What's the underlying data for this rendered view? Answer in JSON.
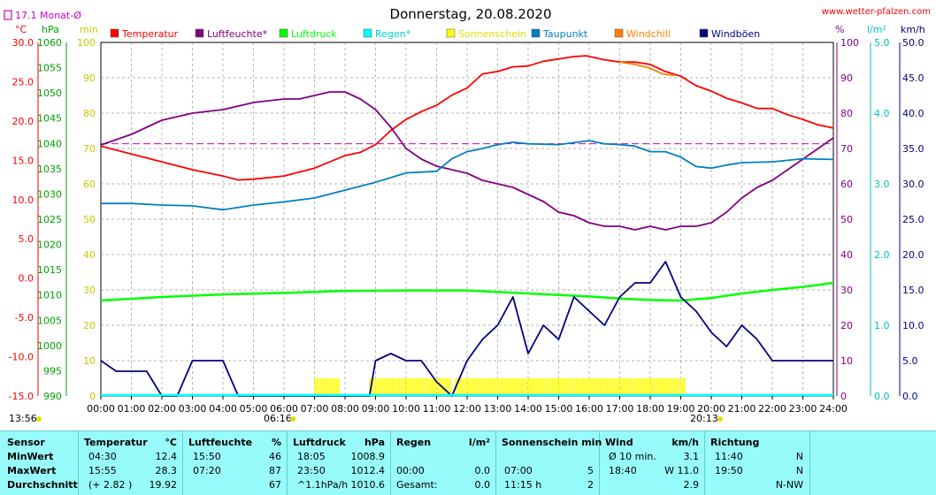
{
  "header": {
    "title": "Donnerstag, 20.08.2020",
    "site": "www.wetter-pfalzen.com",
    "month_avg": "17.1 Monat-Ø",
    "time_start": "13:56",
    "time_end": "20:13",
    "sunrise": "06:16"
  },
  "axes": {
    "temp": {
      "unit": "°C",
      "ticks": [
        "30.0",
        "25.0",
        "20.0",
        "15.0",
        "10.0",
        "5.0",
        "0.0",
        "-5.0",
        "-10.0",
        "-15.0"
      ],
      "color": "#ff0000"
    },
    "pressure": {
      "unit": "hPa",
      "ticks": [
        "1060",
        "1055",
        "1050",
        "1045",
        "1040",
        "1035",
        "1030",
        "1025",
        "1020",
        "1015",
        "1010",
        "1005",
        "1000",
        "995",
        "990"
      ],
      "color": "#00a000"
    },
    "sun": {
      "unit": "min",
      "ticks": [
        "100",
        "90",
        "80",
        "70",
        "60",
        "50",
        "40",
        "30",
        "20",
        "10",
        "0"
      ],
      "color": "#e0e000"
    },
    "humidity": {
      "unit": "%",
      "ticks": [
        "100",
        "90",
        "80",
        "70",
        "60",
        "50",
        "40",
        "30",
        "20",
        "10",
        "0"
      ],
      "color": "#800080"
    },
    "rain": {
      "unit": "l/m²",
      "ticks": [
        "5.0",
        "4.0",
        "3.0",
        "2.0",
        "1.0",
        "0.0"
      ],
      "color": "#00c0c0"
    },
    "wind": {
      "unit": "km/h",
      "ticks": [
        "50.0",
        "45.0",
        "40.0",
        "35.0",
        "30.0",
        "25.0",
        "20.0",
        "15.0",
        "10.0",
        "5.0",
        "0.0"
      ],
      "color": "#000080"
    },
    "x_ticks": [
      "00:00",
      "01:00",
      "02:00",
      "03:00",
      "04:00",
      "05:00",
      "06:00",
      "07:00",
      "08:00",
      "09:00",
      "10:00",
      "11:00",
      "12:00",
      "13:00",
      "14:00",
      "15:00",
      "16:00",
      "17:00",
      "18:00",
      "19:00",
      "20:00",
      "21:00",
      "22:00",
      "23:00",
      "24:00"
    ]
  },
  "legend": [
    {
      "label": "Temperatur",
      "color": "#ff0000"
    },
    {
      "label": "Luftfeuchte*",
      "color": "#800080"
    },
    {
      "label": "Luftdruck",
      "color": "#00ff00"
    },
    {
      "label": "Regen*",
      "color": "#00ffff"
    },
    {
      "label": "Sonnenschein",
      "color": "#ffff00"
    },
    {
      "label": "Taupunkt",
      "color": "#0080c0"
    },
    {
      "label": "Windchill",
      "color": "#ff8000"
    },
    {
      "label": "Windböen",
      "color": "#000080"
    }
  ],
  "chart_data": {
    "type": "line",
    "x_unit": "hour",
    "month_avg_temp": 17.1,
    "series": [
      {
        "name": "Temperatur",
        "axis": "temp",
        "color": "#ff0000",
        "x": [
          0,
          1,
          2,
          3,
          4,
          4.5,
          5,
          6,
          7,
          8,
          8.5,
          9,
          9.5,
          10,
          10.5,
          11,
          11.5,
          12,
          12.5,
          13,
          13.5,
          14,
          14.5,
          15,
          15.5,
          15.9,
          16.5,
          17,
          17.5,
          18,
          18.5,
          19,
          19.5,
          20,
          20.5,
          21,
          21.5,
          22,
          22.5,
          23,
          23.5,
          24
        ],
        "y": [
          16.8,
          15.8,
          14.8,
          13.8,
          13.0,
          12.5,
          12.6,
          13.0,
          14.0,
          15.6,
          16.0,
          17.0,
          18.8,
          20.2,
          21.2,
          22.0,
          23.3,
          24.2,
          26.0,
          26.3,
          26.9,
          27.0,
          27.6,
          27.9,
          28.2,
          28.3,
          27.8,
          27.5,
          27.5,
          27.2,
          26.3,
          25.7,
          24.5,
          23.8,
          22.9,
          22.3,
          21.6,
          21.6,
          20.8,
          20.2,
          19.5,
          19.1
        ]
      },
      {
        "name": "Windchill",
        "axis": "temp",
        "color": "#ff8000",
        "x": [
          17.0,
          17.5,
          18.0,
          18.4,
          18.8
        ],
        "y": [
          27.5,
          27.2,
          26.7,
          26.0,
          25.8
        ]
      },
      {
        "name": "Luftfeuchte*",
        "axis": "humidity",
        "color": "#800080",
        "x": [
          0,
          1,
          2,
          3,
          4,
          4.5,
          5,
          6,
          6.5,
          7,
          7.5,
          8,
          8.5,
          9,
          9.5,
          10,
          10.5,
          11,
          11.5,
          12,
          12.5,
          13,
          13.5,
          14,
          14.5,
          15,
          15.5,
          16,
          16.5,
          17,
          17.5,
          18,
          18.5,
          19,
          19.5,
          20,
          20.5,
          21,
          21.5,
          22,
          22.5,
          23,
          23.5,
          24
        ],
        "y": [
          71,
          74,
          78,
          80,
          81,
          82,
          83,
          84,
          84,
          85,
          86,
          86,
          84,
          81,
          76,
          70,
          67,
          65,
          64,
          63,
          61,
          60,
          59,
          57,
          55,
          52,
          51,
          49,
          48,
          48,
          47,
          48,
          47,
          48,
          48,
          49,
          52,
          56,
          59,
          61,
          64,
          67,
          70,
          73
        ]
      },
      {
        "name": "Luftdruck",
        "axis": "pressure",
        "color": "#00ff00",
        "x": [
          0,
          2,
          4,
          6,
          8,
          10,
          12,
          14,
          16,
          17,
          18,
          19,
          20,
          21,
          22,
          23,
          24
        ],
        "y": [
          1008.9,
          1009.6,
          1010.1,
          1010.4,
          1010.8,
          1010.9,
          1010.9,
          1010.3,
          1009.7,
          1009.3,
          1009.0,
          1008.9,
          1009.4,
          1010.3,
          1011.0,
          1011.6,
          1012.4
        ]
      },
      {
        "name": "Taupunkt",
        "axis": "temp",
        "color": "#0080c0",
        "x": [
          0,
          1,
          2,
          3,
          4,
          5,
          6,
          7,
          8,
          9,
          10,
          11,
          11.5,
          12,
          12.5,
          13,
          13.5,
          14,
          15,
          16,
          16.5,
          17,
          17.5,
          18,
          18.5,
          19,
          19.5,
          20,
          20.5,
          21,
          22,
          23,
          24
        ],
        "y": [
          9.5,
          9.5,
          9.3,
          9.2,
          8.7,
          9.3,
          9.7,
          10.2,
          11.2,
          12.2,
          13.4,
          13.6,
          15.2,
          16.1,
          16.5,
          17.0,
          17.3,
          17.1,
          17.0,
          17.5,
          17.1,
          17.0,
          16.8,
          16.1,
          16.1,
          15.4,
          14.2,
          14.0,
          14.4,
          14.7,
          14.8,
          15.2,
          15.1
        ]
      },
      {
        "name": "Windböen",
        "axis": "wind",
        "color": "#000080",
        "x": [
          0,
          0.5,
          1,
          1.5,
          2,
          2.5,
          3,
          3.5,
          4,
          4.5,
          5,
          8.8,
          9,
          9.5,
          10,
          10.5,
          11,
          11.5,
          12,
          12.5,
          13,
          13.5,
          14,
          14.5,
          15,
          15.5,
          16,
          16.5,
          17,
          17.5,
          18,
          18.5,
          19,
          19.5,
          20,
          20.5,
          21,
          21.5,
          22,
          22.5,
          23,
          23.5,
          24
        ],
        "y": [
          5,
          3.5,
          3.5,
          3.5,
          0,
          0,
          5,
          5,
          5,
          0,
          0,
          0,
          5,
          6,
          5,
          5,
          2,
          0,
          5,
          8,
          10,
          14,
          6,
          10,
          8,
          14,
          12,
          10,
          14,
          16,
          16,
          19,
          14,
          12,
          9,
          7,
          10,
          8,
          5,
          5,
          5,
          5,
          5
        ]
      },
      {
        "name": "Regen*",
        "axis": "rain",
        "color": "#00ffff",
        "x": [
          0,
          24
        ],
        "y": [
          0,
          0
        ]
      }
    ],
    "sunshine_blocks": [
      [
        7.0,
        7.8
      ],
      [
        8.8,
        11.5
      ],
      [
        11.6,
        19.1
      ]
    ],
    "ylim": {
      "temp": [
        -15,
        30
      ],
      "humidity": [
        0,
        100
      ],
      "pressure": [
        990,
        1060
      ],
      "wind": [
        0,
        50
      ],
      "rain": [
        0,
        5
      ],
      "sun": [
        0,
        100
      ]
    },
    "grid": true
  },
  "stats": {
    "headers": {
      "sensor": "Sensor",
      "temp": "Temperatur",
      "temp_unit": "°C",
      "hum": "Luftfeuchte",
      "hum_unit": "%",
      "press": "Luftdruck",
      "press_unit": "hPa",
      "rain": "Regen",
      "rain_unit": "l/m²",
      "sun": "Sonnenschein min",
      "wind": "Wind",
      "wind_unit": "km/h",
      "dir": "Richtung"
    },
    "rows": [
      {
        "label": "MinWert",
        "temp_time": "04:30",
        "temp_val": "12.4",
        "hum_time": "15:50",
        "hum_val": "46",
        "press_time": "18:05",
        "press_val": "1008.9",
        "rain_time": "",
        "rain_val": "",
        "sun_time": "",
        "sun_val": "",
        "wind_time": "Ø 10 min.",
        "wind_val": "3.1",
        "dir_time": "11:40",
        "dir_val": "N"
      },
      {
        "label": "MaxWert",
        "temp_time": "15:55",
        "temp_val": "28.3",
        "hum_time": "07:20",
        "hum_val": "87",
        "press_time": "23:50",
        "press_val": "1012.4",
        "rain_time": "00:00",
        "rain_val": "0.0",
        "sun_time": "07:00",
        "sun_val": "5",
        "wind_time": "18:40",
        "wind_val": "W 11.0",
        "dir_time": "19:50",
        "dir_val": "N"
      },
      {
        "label": "Durchschnitt",
        "temp_time": "(+ 2.82 )",
        "temp_val": "19.92",
        "hum_time": "",
        "hum_val": "67",
        "press_time": "^1.1hPa/h",
        "press_val": "1010.6",
        "rain_time": "Gesamt:",
        "rain_val": "0.0",
        "sun_time": "11:15 h",
        "sun_val": "2",
        "wind_time": "",
        "wind_val": "2.9",
        "dir_time": "",
        "dir_val": "N-NW"
      }
    ]
  }
}
